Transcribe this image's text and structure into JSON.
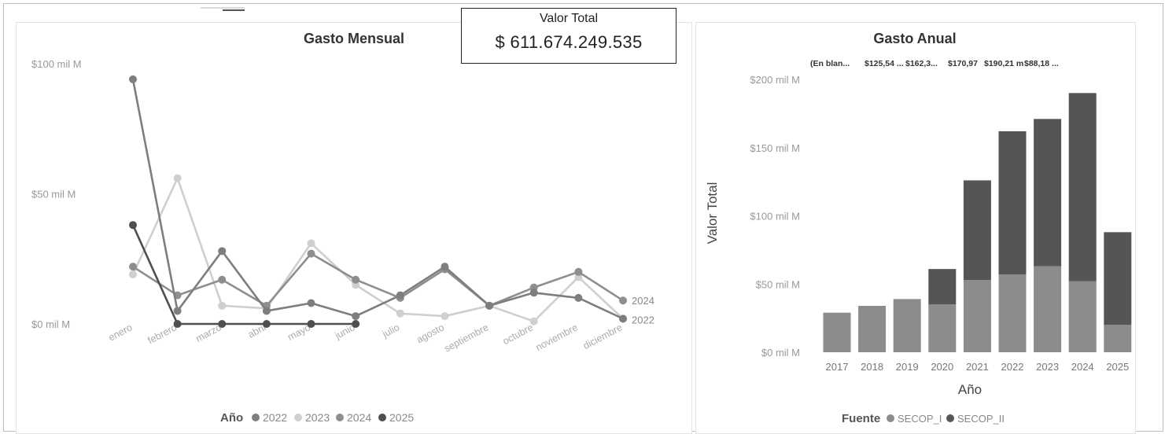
{
  "kpi": {
    "label": "Valor Total",
    "value": "$ 611.674.249.535"
  },
  "colors": {
    "2022": "#7e7e7e",
    "2023": "#cfcfcf",
    "2024": "#8e8e8e",
    "2025": "#4f4f4f",
    "SECOP_I": "#8c8c8c",
    "SECOP_II": "#555555"
  },
  "chart_data": [
    {
      "type": "line",
      "title": "Gasto Mensual",
      "y_tick_labels": [
        "$100 mil M",
        "$50 mil M",
        "$0 mil M"
      ],
      "y_ticks": [
        100,
        50,
        0
      ],
      "ylim": [
        0,
        100
      ],
      "categories": [
        "enero",
        "febrero",
        "marzo",
        "abril",
        "mayo",
        "junio",
        "julio",
        "agosto",
        "septiembre",
        "octubre",
        "noviembre",
        "diciembre"
      ],
      "series": [
        {
          "name": "2022",
          "values": [
            94,
            5,
            28,
            5,
            8,
            3,
            11,
            22,
            7,
            12,
            10,
            2
          ]
        },
        {
          "name": "2023",
          "values": [
            19,
            56,
            7,
            6,
            31,
            15,
            4,
            3,
            7,
            1,
            18,
            2
          ]
        },
        {
          "name": "2024",
          "values": [
            22,
            11,
            17,
            7,
            27,
            17,
            10,
            21,
            7,
            14,
            20,
            9
          ]
        },
        {
          "name": "2025",
          "values": [
            38,
            0,
            0,
            0,
            0,
            0,
            null,
            null,
            null,
            null,
            null,
            null
          ]
        }
      ],
      "end_labels": [
        "2024",
        "2022"
      ],
      "legend": {
        "title": "Año",
        "items": [
          "2022",
          "2023",
          "2024",
          "2025"
        ],
        "position": "bottom"
      }
    },
    {
      "type": "bar",
      "stacked": true,
      "title": "Gasto Anual",
      "xlabel": "Año",
      "ylabel": "Valor Total",
      "y_tick_labels": [
        "$200 mil M",
        "$150 mil M",
        "$100 mil M",
        "$50 mil M",
        "$0 mil M"
      ],
      "y_ticks": [
        200,
        150,
        100,
        50,
        0
      ],
      "ylim": [
        0,
        200
      ],
      "categories": [
        "2017",
        "2018",
        "2019",
        "2020",
        "2021",
        "2022",
        "2023",
        "2024",
        "2025"
      ],
      "series": [
        {
          "name": "SECOP_I",
          "values": [
            29,
            34,
            39,
            35,
            53,
            57,
            63,
            52,
            20
          ]
        },
        {
          "name": "SECOP_II",
          "values": [
            0,
            0,
            0,
            26,
            73,
            105,
            108,
            138,
            68
          ]
        }
      ],
      "top_labels": [
        "(En blan...",
        "$125,54 ...",
        "$162,3...",
        "$170,97",
        "$190,21 m",
        "$88,18 ..."
      ],
      "legend": {
        "title": "Fuente",
        "items": [
          "SECOP_I",
          "SECOP_II"
        ],
        "position": "bottom"
      }
    }
  ]
}
